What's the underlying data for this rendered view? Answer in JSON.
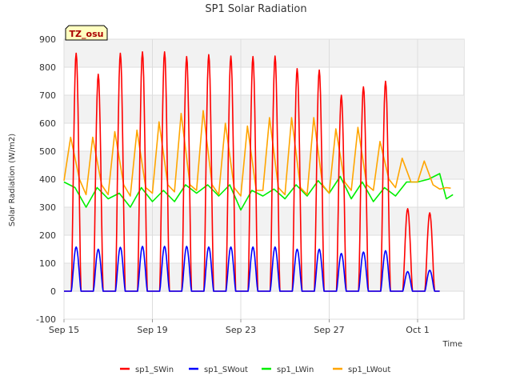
{
  "chart_data": {
    "type": "line",
    "title": "SP1 Solar Radiation",
    "xlabel": "Time",
    "ylabel": "Solar Radiation (W/m2)",
    "tz_label": "TZ_osu",
    "ylim": [
      -100,
      900
    ],
    "yticks": [
      -100,
      0,
      100,
      200,
      300,
      400,
      500,
      600,
      700,
      800,
      900
    ],
    "xrange_days": [
      0,
      18.1
    ],
    "xticks": [
      {
        "day": 0,
        "label": "Sep 15"
      },
      {
        "day": 4,
        "label": "Sep 19"
      },
      {
        "day": 8,
        "label": "Sep 23"
      },
      {
        "day": 12,
        "label": "Sep 27"
      },
      {
        "day": 16,
        "label": "Oct 1"
      }
    ],
    "grid": true,
    "legend_position": "bottom",
    "series": [
      {
        "name": "sp1_SWin",
        "color": "#ff0000",
        "kind": "sw",
        "daily_peaks": [
          850,
          775,
          850,
          855,
          855,
          838,
          845,
          840,
          838,
          840,
          795,
          790,
          700,
          730,
          750,
          295,
          280
        ]
      },
      {
        "name": "sp1_SWout",
        "color": "#0000ff",
        "kind": "sw",
        "daily_peaks": [
          158,
          150,
          157,
          160,
          160,
          160,
          158,
          158,
          158,
          158,
          150,
          150,
          135,
          140,
          145,
          70,
          75
        ]
      },
      {
        "name": "sp1_LWin",
        "color": "#00ee00",
        "kind": "lw",
        "daily_values": [
          [
            0,
            390
          ],
          [
            0.5,
            370
          ],
          [
            1,
            300
          ],
          [
            1.5,
            370
          ],
          [
            2,
            330
          ],
          [
            2.5,
            350
          ],
          [
            3,
            300
          ],
          [
            3.5,
            370
          ],
          [
            4,
            320
          ],
          [
            4.5,
            360
          ],
          [
            5,
            320
          ],
          [
            5.5,
            380
          ],
          [
            6,
            350
          ],
          [
            6.5,
            380
          ],
          [
            7,
            340
          ],
          [
            7.5,
            380
          ],
          [
            8,
            290
          ],
          [
            8.5,
            360
          ],
          [
            9,
            340
          ],
          [
            9.5,
            365
          ],
          [
            10,
            330
          ],
          [
            10.5,
            380
          ],
          [
            11,
            340
          ],
          [
            11.5,
            395
          ],
          [
            12,
            350
          ],
          [
            12.5,
            410
          ],
          [
            13,
            330
          ],
          [
            13.5,
            390
          ],
          [
            14,
            320
          ],
          [
            14.5,
            370
          ],
          [
            15,
            340
          ],
          [
            15.5,
            390
          ],
          [
            16,
            390
          ],
          [
            16.5,
            400
          ],
          [
            17,
            420
          ],
          [
            17.3,
            330
          ],
          [
            17.6,
            345
          ]
        ]
      },
      {
        "name": "sp1_LWout",
        "color": "#ffa500",
        "kind": "lw",
        "daily_values": [
          [
            0,
            395
          ],
          [
            0.3,
            550
          ],
          [
            0.7,
            400
          ],
          [
            1,
            345
          ],
          [
            1.3,
            550
          ],
          [
            1.7,
            380
          ],
          [
            2,
            345
          ],
          [
            2.3,
            570
          ],
          [
            2.7,
            380
          ],
          [
            3,
            340
          ],
          [
            3.3,
            575
          ],
          [
            3.7,
            370
          ],
          [
            4,
            350
          ],
          [
            4.3,
            605
          ],
          [
            4.7,
            380
          ],
          [
            5,
            355
          ],
          [
            5.3,
            635
          ],
          [
            5.7,
            380
          ],
          [
            6,
            360
          ],
          [
            6.3,
            645
          ],
          [
            6.7,
            380
          ],
          [
            7,
            345
          ],
          [
            7.3,
            600
          ],
          [
            7.7,
            370
          ],
          [
            8,
            340
          ],
          [
            8.3,
            590
          ],
          [
            8.7,
            360
          ],
          [
            9,
            360
          ],
          [
            9.3,
            620
          ],
          [
            9.7,
            370
          ],
          [
            10,
            345
          ],
          [
            10.3,
            620
          ],
          [
            10.7,
            370
          ],
          [
            11,
            345
          ],
          [
            11.3,
            620
          ],
          [
            11.7,
            380
          ],
          [
            12,
            350
          ],
          [
            12.3,
            580
          ],
          [
            12.7,
            390
          ],
          [
            13,
            360
          ],
          [
            13.3,
            585
          ],
          [
            13.7,
            380
          ],
          [
            14,
            360
          ],
          [
            14.3,
            535
          ],
          [
            14.7,
            400
          ],
          [
            15,
            370
          ],
          [
            15.3,
            475
          ],
          [
            15.7,
            390
          ],
          [
            16,
            390
          ],
          [
            16.3,
            465
          ],
          [
            16.7,
            380
          ],
          [
            17,
            365
          ],
          [
            17.3,
            370
          ],
          [
            17.5,
            368
          ]
        ]
      }
    ]
  }
}
